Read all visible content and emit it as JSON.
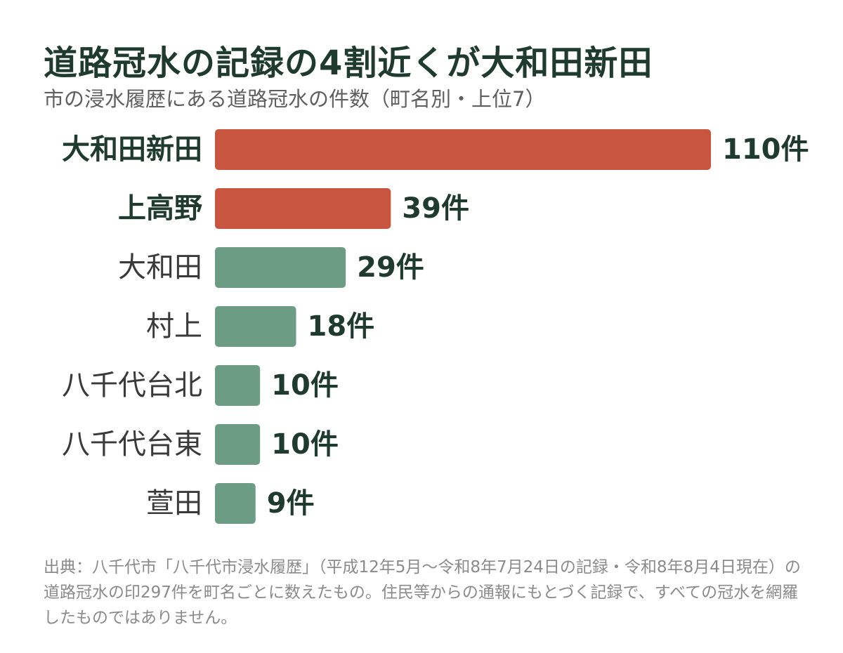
{
  "title": "道路冠水の記録の4割近くが大和田新田",
  "subtitle": "市の浸水履歴にある道路冠水の件数（町名別・上位7）",
  "source": "出典：八千代市「八千代市浸水履歴」（平成12年5月～令和8年7月24日の記録・令和8年8月4日現在）の道路冠水の印297件を町名ごとに数えたもの。住民等からの通報にもとづく記録で、すべての冠水を網羅したものではありません。",
  "colors": {
    "highlight": "#c75540",
    "normal": "#6d9c84",
    "text": "#1f3a2e"
  },
  "chart_data": {
    "type": "bar",
    "orientation": "horizontal",
    "categories": [
      "大和田新田",
      "上高野",
      "大和田",
      "村上",
      "八千代台北",
      "八千代台東",
      "萱田"
    ],
    "values": [
      110,
      39,
      29,
      18,
      10,
      10,
      9
    ],
    "value_labels": [
      "110件",
      "39件",
      "29件",
      "18件",
      "10件",
      "10件",
      "9件"
    ],
    "highlighted": [
      true,
      true,
      false,
      false,
      false,
      false,
      false
    ],
    "xlim": [
      0,
      110
    ],
    "grid": false,
    "legend": "none"
  }
}
